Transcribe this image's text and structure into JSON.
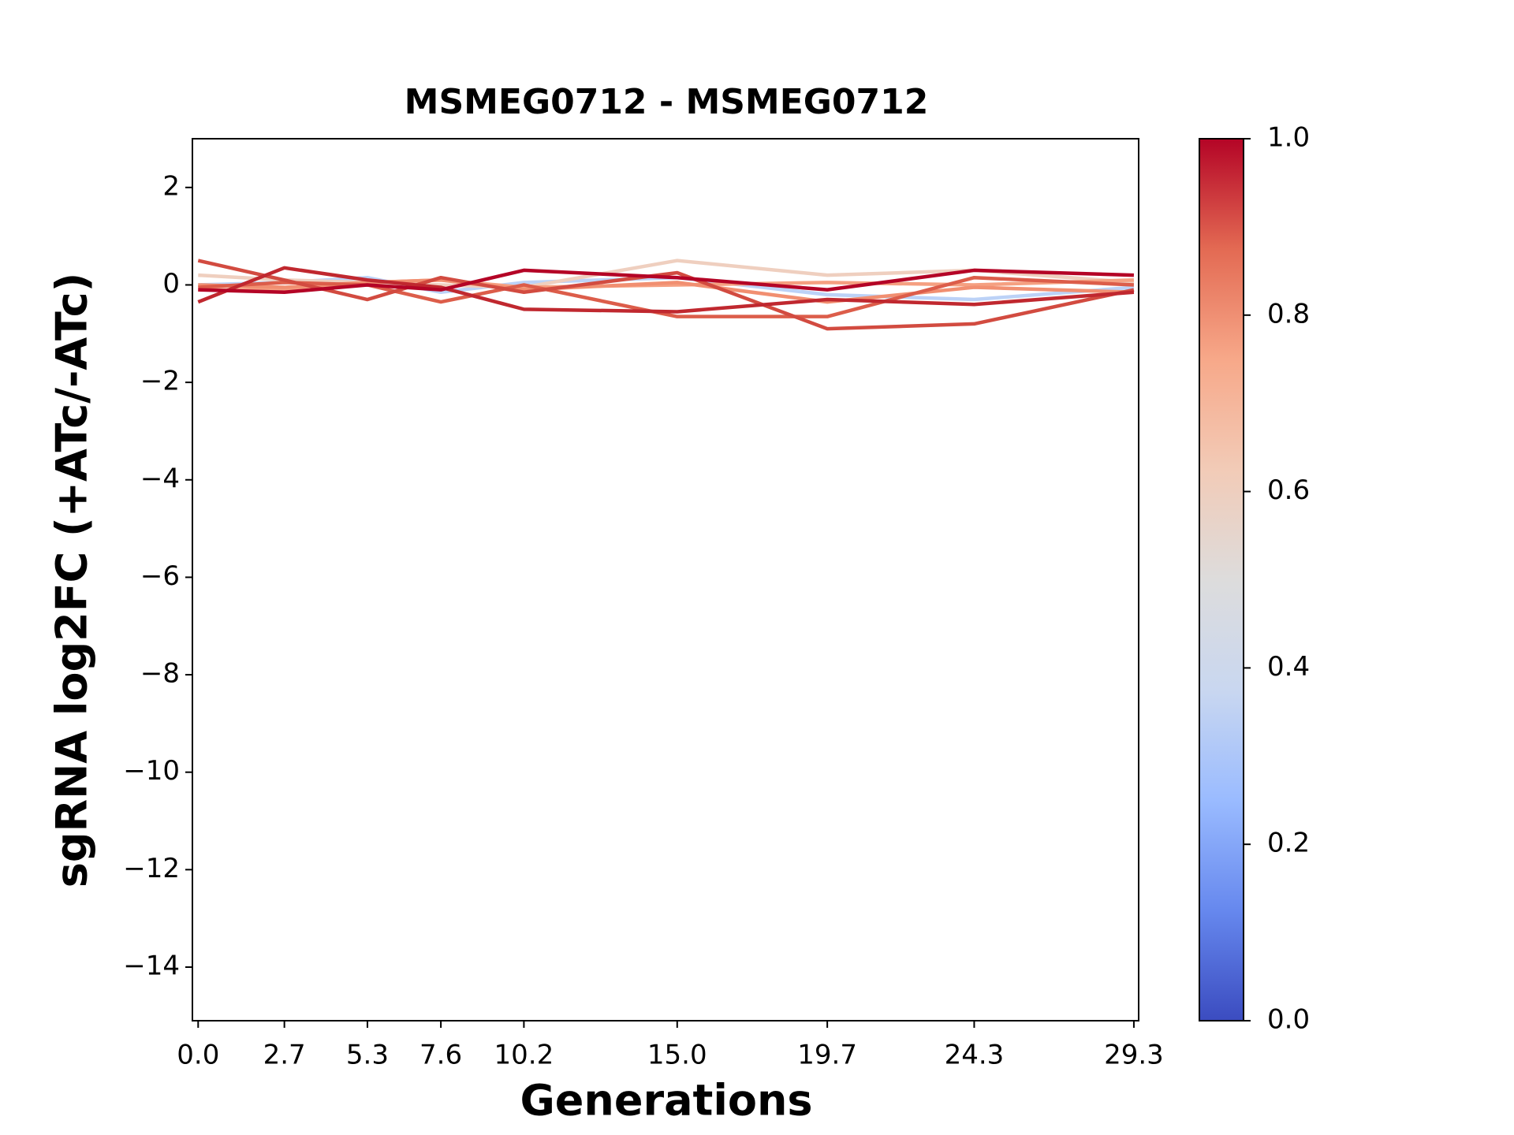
{
  "chart_data": {
    "type": "line",
    "title": "MSMEG0712 - MSMEG0712",
    "x_label": "Generations",
    "y_label": "sgRNA log2FC (+ATc/-ATc)",
    "x": [
      0,
      2.7,
      5.3,
      7.6,
      10.2,
      15.0,
      19.7,
      24.3,
      29.3
    ],
    "xlim": [
      -0.18,
      29.45
    ],
    "xticks": [
      {
        "value": 0,
        "label": "0.0"
      },
      2.7,
      5.3,
      7.6,
      10.2,
      {
        "value": 15,
        "label": "15.0"
      },
      19.7,
      24.3,
      29.3
    ],
    "ylim": [
      -15.1,
      3
    ],
    "yticks": [
      2,
      0,
      {
        "value": -2,
        "label": "−2"
      },
      {
        "value": -4,
        "label": "−4"
      },
      {
        "value": -6,
        "label": "−6"
      },
      {
        "value": -8,
        "label": "−8"
      },
      {
        "value": -10,
        "label": "−10"
      },
      {
        "value": -12,
        "label": "−12"
      },
      {
        "value": -14,
        "label": "−14"
      }
    ],
    "series": [
      {
        "color": "#bcd2f7",
        "values": [
          0.0,
          0.05,
          0.15,
          -0.15,
          0.05,
          0.15,
          -0.2,
          -0.3,
          -0.05
        ]
      },
      {
        "color": "#efcfbf",
        "values": [
          0.2,
          0.1,
          0.05,
          0.0,
          -0.05,
          0.5,
          0.2,
          0.3,
          0.05
        ]
      },
      {
        "color": "#f5a081",
        "values": [
          -0.1,
          -0.1,
          0.05,
          0.1,
          -0.05,
          0.0,
          0.05,
          0.0,
          0.1
        ]
      },
      {
        "color": "#f18f71",
        "values": [
          0.0,
          -0.05,
          0.05,
          0.1,
          -0.1,
          0.05,
          -0.35,
          -0.05,
          -0.15
        ]
      },
      {
        "color": "#dc5d4a",
        "values": [
          -0.05,
          0.05,
          0.0,
          -0.35,
          0.0,
          -0.65,
          -0.65,
          0.15,
          0.0
        ]
      },
      {
        "color": "#d24b40",
        "values": [
          0.5,
          0.1,
          -0.3,
          0.15,
          -0.15,
          0.25,
          -0.9,
          -0.8,
          -0.1
        ]
      },
      {
        "color": "#c0282f",
        "values": [
          -0.35,
          0.35,
          0.1,
          -0.05,
          -0.5,
          -0.55,
          -0.3,
          -0.4,
          -0.15
        ]
      },
      {
        "color": "#b40426",
        "values": [
          -0.1,
          -0.15,
          0.0,
          -0.1,
          0.3,
          0.15,
          -0.1,
          0.3,
          0.2
        ]
      }
    ],
    "colorbar": {
      "lim": [
        0,
        1
      ],
      "ticks": [
        {
          "value": 0,
          "label": "0.0"
        },
        0.2,
        0.4,
        0.6,
        0.8,
        {
          "value": 1,
          "label": "1.0"
        }
      ],
      "colors": [
        "#3b4cc0",
        "#6688ee",
        "#9abbff",
        "#c9d7f0",
        "#dddcdc",
        "#f2cbb7",
        "#f7a889",
        "#e36a53",
        "#b40426"
      ]
    }
  }
}
